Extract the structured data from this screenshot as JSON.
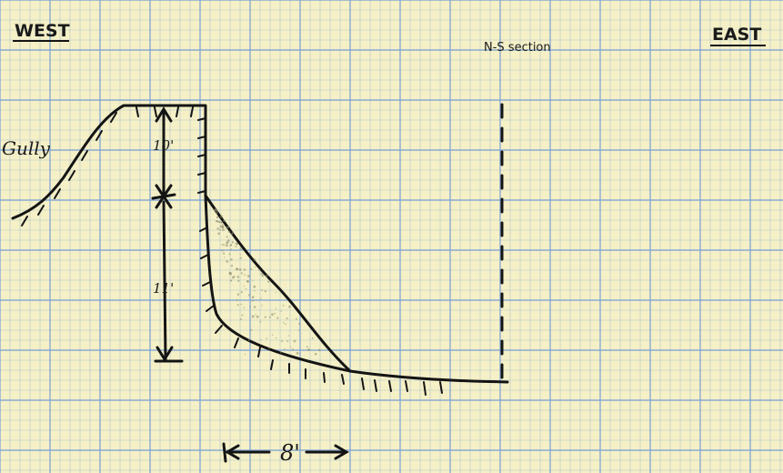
{
  "sheet": {
    "paper_color": "#f5f0c6",
    "grid_color": "#7fa3d6",
    "ink_color": "#141414"
  },
  "labels": {
    "west": "WEST",
    "east": "EAST",
    "section": "N-S section",
    "gully": "Gully",
    "height_top": "10'",
    "height_bottom": "11'",
    "width": "8'"
  }
}
